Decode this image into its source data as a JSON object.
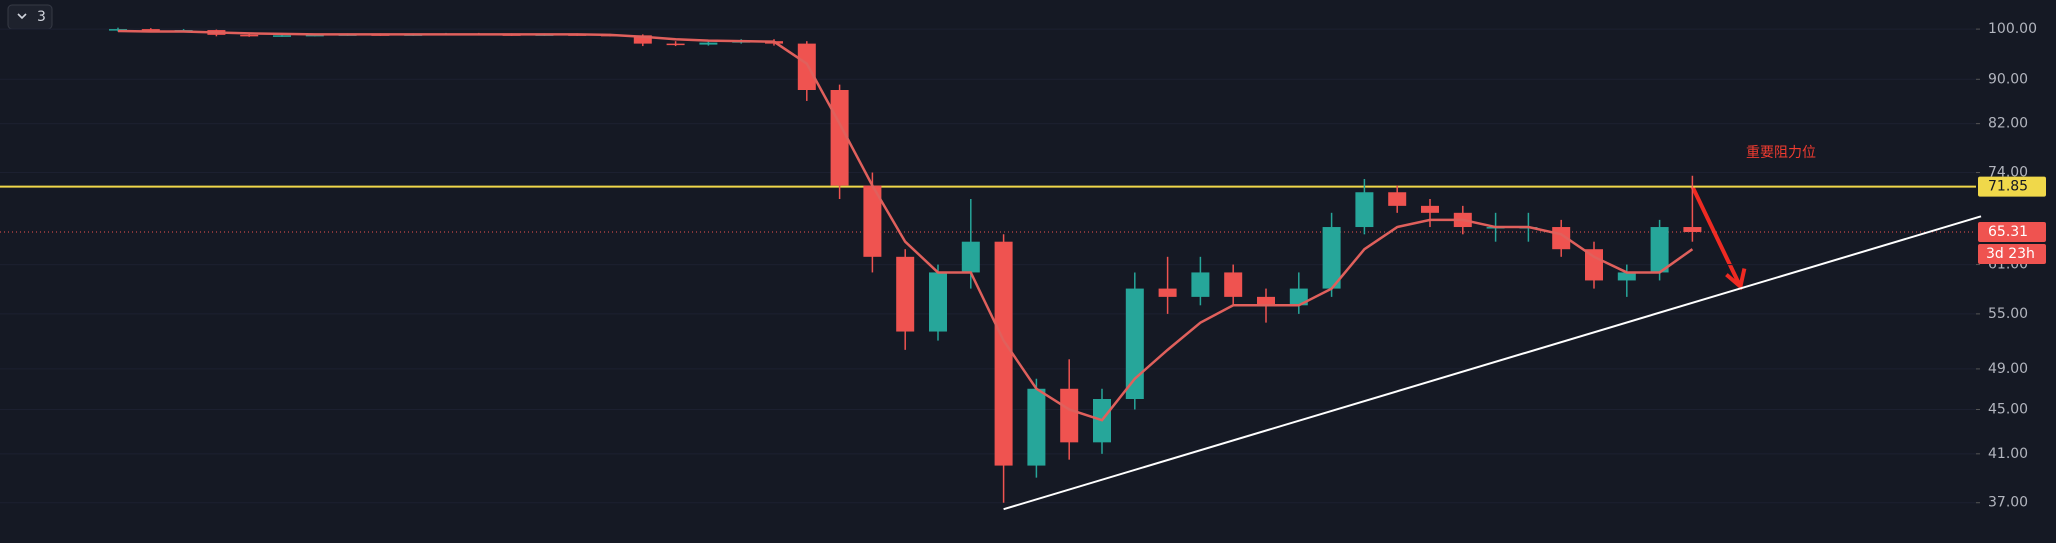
{
  "chart_data": {
    "type": "candlestick",
    "collapse_label": "3",
    "annotation": "重要阻力位",
    "log_scale": true,
    "ylim": [
      34.0,
      106.3
    ],
    "yticks": [
      {
        "value": 100,
        "label": "100.00"
      },
      {
        "value": 90,
        "label": "90.00"
      },
      {
        "value": 82,
        "label": "82.00"
      },
      {
        "value": 74,
        "label": "74.00"
      },
      {
        "value": 61,
        "label": "61.00"
      },
      {
        "value": 55,
        "label": "55.00"
      },
      {
        "value": 49,
        "label": "49.00"
      },
      {
        "value": 45,
        "label": "45.00"
      },
      {
        "value": 41,
        "label": "41.00"
      },
      {
        "value": 37,
        "label": "37.00"
      }
    ],
    "up_color": "#26a69a",
    "down_color": "#ef5350",
    "open": [
      99.8,
      100,
      99.5,
      99.8,
      98.8,
      98.6,
      98.7,
      98.8,
      98.9,
      98.8,
      98.9,
      99,
      98.9,
      98.8,
      98.9,
      98.8,
      98.7,
      97,
      96.8,
      97.2,
      97.5,
      97,
      88,
      72,
      62,
      53,
      60,
      64,
      40,
      47,
      42,
      46,
      58,
      57,
      60,
      57,
      56,
      58,
      66,
      71,
      69,
      68,
      66,
      66,
      66,
      63,
      59,
      60,
      66
    ],
    "high": [
      100.3,
      100.2,
      100,
      99.9,
      99,
      99,
      99,
      99.1,
      99.1,
      99.1,
      99.2,
      99.2,
      99.1,
      99.1,
      99.1,
      99,
      98.9,
      97.5,
      97.6,
      97.9,
      97.9,
      97.5,
      89,
      74,
      63,
      61,
      70,
      65,
      48,
      50,
      47,
      60,
      62,
      62,
      61,
      58,
      60,
      68,
      73,
      72,
      70,
      69,
      68,
      68,
      67,
      64,
      61,
      67,
      73.5
    ],
    "low": [
      99.5,
      99.3,
      99.3,
      98.5,
      98.4,
      98.4,
      98.5,
      98.6,
      98.6,
      98.6,
      98.7,
      98.7,
      98.6,
      98.6,
      98.6,
      98.5,
      96.5,
      96.5,
      96.6,
      97,
      96.6,
      86,
      70,
      60,
      51,
      52,
      58,
      37,
      39,
      40.5,
      41,
      45,
      55,
      56,
      56,
      54,
      55,
      57,
      65,
      68,
      66,
      65,
      64,
      64,
      62,
      58,
      57,
      59,
      64
    ],
    "close": [
      100,
      99.5,
      99.8,
      98.8,
      98.6,
      98.7,
      98.8,
      98.9,
      98.8,
      98.9,
      99,
      98.9,
      98.8,
      98.9,
      98.8,
      98.7,
      97,
      96.8,
      97.2,
      97.5,
      97,
      88,
      72,
      62,
      53,
      60,
      64,
      40,
      47,
      42,
      46,
      58,
      57,
      60,
      57,
      56,
      58,
      66,
      71,
      69,
      68,
      66,
      66,
      66,
      63,
      59,
      60,
      66,
      65.31
    ],
    "moving_average": {
      "color": "#e0605c",
      "values": [
        99.6,
        99.5,
        99.5,
        99.3,
        99.1,
        99,
        98.9,
        98.9,
        98.9,
        98.9,
        98.9,
        98.9,
        98.9,
        98.9,
        98.9,
        98.8,
        98.4,
        97.9,
        97.6,
        97.5,
        97.4,
        93,
        82,
        72,
        64,
        60,
        60,
        52,
        47,
        45,
        44,
        48,
        51,
        54,
        56,
        56,
        56,
        58,
        63,
        66,
        67,
        67,
        66,
        66,
        65,
        62,
        60,
        60,
        63
      ]
    },
    "resistance": {
      "value": 71.85,
      "label": "71.85",
      "color": "#f0d84a"
    },
    "last_price": {
      "value": 65.31,
      "label": "65.31",
      "countdown": "3d 23h",
      "color": "#ef5350"
    },
    "trend_line": {
      "x": [
        27,
        56.8
      ],
      "y": [
        36.5,
        67.5
      ],
      "color": "#ffffff"
    }
  }
}
